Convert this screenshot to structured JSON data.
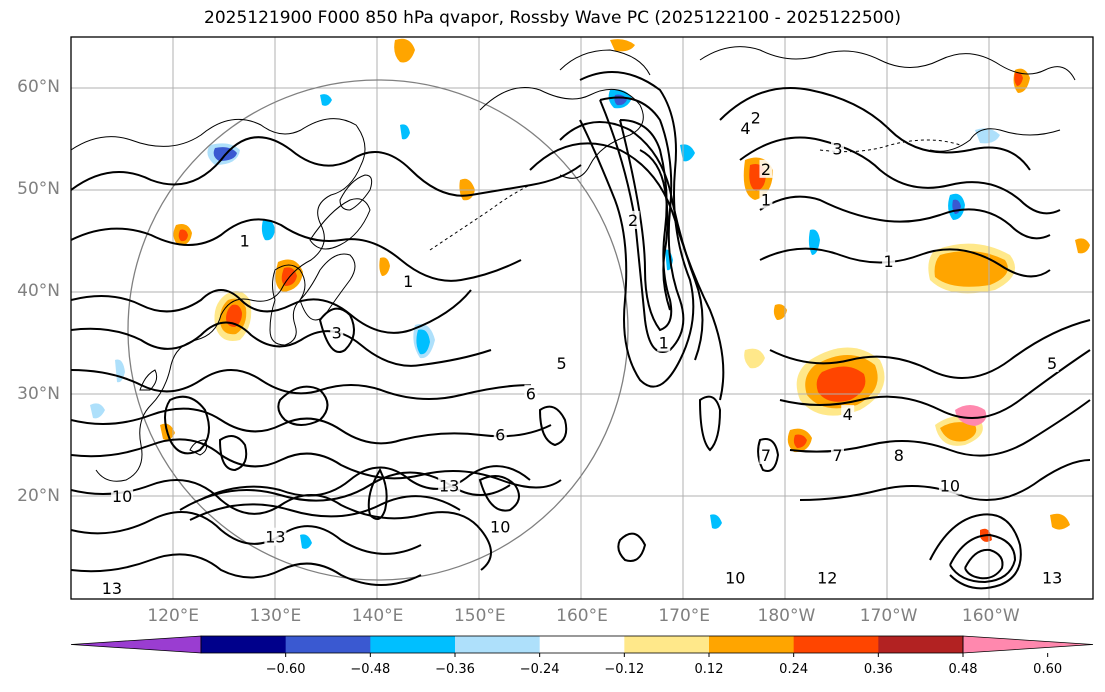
{
  "title": "2025121900 F000 850 hPa qvapor, Rossby Wave PC (2025122100 - 2025122500)",
  "map": {
    "lon_range": [
      110,
      210
    ],
    "lat_range": [
      10,
      65
    ],
    "lat_ticks": [
      {
        "value": 60,
        "label": "60°N"
      },
      {
        "value": 50,
        "label": "50°N"
      },
      {
        "value": 40,
        "label": "40°N"
      },
      {
        "value": 30,
        "label": "30°N"
      },
      {
        "value": 20,
        "label": "20°N"
      }
    ],
    "lon_ticks": [
      {
        "value": 120,
        "label": "120°E"
      },
      {
        "value": 130,
        "label": "130°E"
      },
      {
        "value": 140,
        "label": "140°E"
      },
      {
        "value": 150,
        "label": "150°E"
      },
      {
        "value": 160,
        "label": "160°E"
      },
      {
        "value": 170,
        "label": "170°E"
      },
      {
        "value": 180,
        "label": "180°W"
      },
      {
        "value": 190,
        "label": "170°W"
      },
      {
        "value": 200,
        "label": "160°W"
      }
    ],
    "contour_labels": [
      {
        "lon": 127,
        "lat": 45,
        "text": "1"
      },
      {
        "lon": 143,
        "lat": 41,
        "text": "1"
      },
      {
        "lon": 168,
        "lat": 35,
        "text": "1"
      },
      {
        "lon": 178,
        "lat": 49,
        "text": "1"
      },
      {
        "lon": 190,
        "lat": 43,
        "text": "1"
      },
      {
        "lon": 177,
        "lat": 57,
        "text": "2"
      },
      {
        "lon": 178,
        "lat": 52,
        "text": "2"
      },
      {
        "lon": 165,
        "lat": 47,
        "text": "2"
      },
      {
        "lon": 136,
        "lat": 36,
        "text": "3"
      },
      {
        "lon": 185,
        "lat": 54,
        "text": "3"
      },
      {
        "lon": 176,
        "lat": 56,
        "text": "4"
      },
      {
        "lon": 186,
        "lat": 28,
        "text": "4"
      },
      {
        "lon": 158,
        "lat": 33,
        "text": "5"
      },
      {
        "lon": 206,
        "lat": 33,
        "text": "5"
      },
      {
        "lon": 155,
        "lat": 30,
        "text": "6"
      },
      {
        "lon": 152,
        "lat": 26,
        "text": "6"
      },
      {
        "lon": 178,
        "lat": 24,
        "text": "7"
      },
      {
        "lon": 185,
        "lat": 24,
        "text": "7"
      },
      {
        "lon": 191,
        "lat": 24,
        "text": "8"
      },
      {
        "lon": 196,
        "lat": 21,
        "text": "10"
      },
      {
        "lon": 147,
        "lat": 21,
        "text": "13"
      },
      {
        "lon": 130,
        "lat": 16,
        "text": "13"
      },
      {
        "lon": 114,
        "lat": 11,
        "text": "13"
      },
      {
        "lon": 115,
        "lat": 20,
        "text": "10"
      },
      {
        "lon": 152,
        "lat": 17,
        "text": "10"
      },
      {
        "lon": 175,
        "lat": 12,
        "text": "10"
      },
      {
        "lon": 206,
        "lat": 12,
        "text": "13"
      },
      {
        "lon": 184,
        "lat": 12,
        "text": "12"
      }
    ]
  },
  "colorbar": {
    "colors": [
      "#9a3dd1",
      "#00008b",
      "#3a59d1",
      "#00bfff",
      "#aee0fb",
      "#ffffff",
      "#ffe88a",
      "#ffa500",
      "#ff4500",
      "#b22222",
      "#ff88ae"
    ],
    "tick_labels": [
      "−0.60",
      "−0.48",
      "−0.36",
      "−0.24",
      "−0.12",
      "0.12",
      "0.24",
      "0.36",
      "0.48",
      "0.60"
    ]
  }
}
